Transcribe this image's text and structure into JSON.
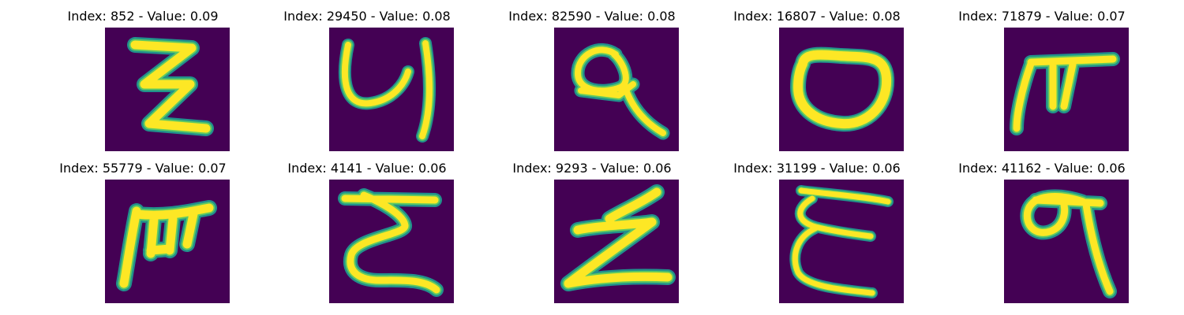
{
  "figure": {
    "colors": {
      "background": "#440154",
      "stroke_edge": "#21918c",
      "stroke_mid": "#5ec962",
      "stroke_core": "#fde725"
    },
    "panels": [
      {
        "title": "Index: 852 - Value: 0.09",
        "glyph": "handwritten-z-like-character"
      },
      {
        "title": "Index: 29450 - Value: 0.08",
        "glyph": "handwritten-u-hook-character"
      },
      {
        "title": "Index: 82590 - Value: 0.08",
        "glyph": "handwritten-loop-tail-character"
      },
      {
        "title": "Index: 16807 - Value: 0.08",
        "glyph": "handwritten-o-character"
      },
      {
        "title": "Index: 71879 - Value: 0.07",
        "glyph": "handwritten-pi-like-character"
      },
      {
        "title": "Index: 55779 - Value: 0.07",
        "glyph": "handwritten-m-like-character"
      },
      {
        "title": "Index: 4141 - Value: 0.06",
        "glyph": "handwritten-z-like-character"
      },
      {
        "title": "Index: 9293 - Value: 0.06",
        "glyph": "handwritten-z-like-character"
      },
      {
        "title": "Index: 31199 - Value: 0.06",
        "glyph": "handwritten-epsilon-like-character"
      },
      {
        "title": "Index: 41162 - Value: 0.06",
        "glyph": "handwritten-loop-tail-character"
      }
    ]
  }
}
